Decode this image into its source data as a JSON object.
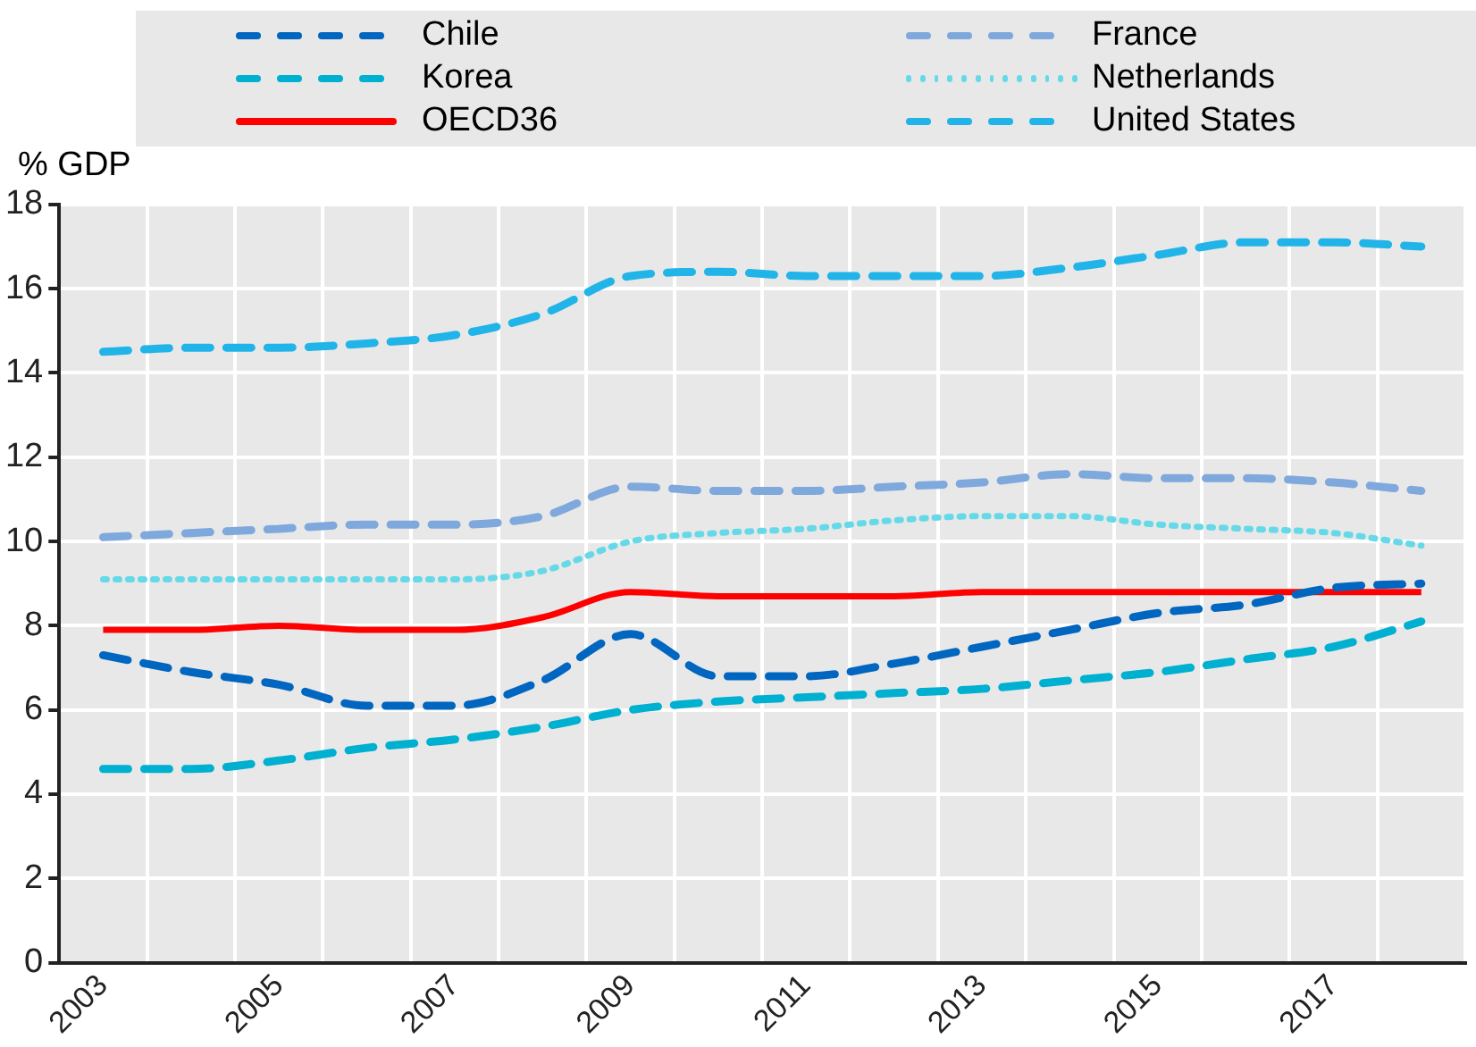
{
  "chart_data": {
    "type": "line",
    "ylabel": "% GDP",
    "categories": [
      "2003",
      null,
      "2005",
      null,
      "2007",
      null,
      "2009",
      null,
      "2011",
      null,
      "2013",
      null,
      "2015",
      null,
      "2017",
      null
    ],
    "ylim": [
      0,
      18
    ],
    "yticks": [
      0,
      2,
      4,
      6,
      8,
      10,
      12,
      14,
      16,
      18
    ],
    "grid": true,
    "legend": "top",
    "marker": "none",
    "series": [
      {
        "name": "Chile",
        "color": "#0066c0",
        "line_style": "dashed",
        "values": [
          7.3,
          6.9,
          6.6,
          6.1,
          6.1,
          6.7,
          7.8,
          6.8,
          6.8,
          7.1,
          7.5,
          7.9,
          8.3,
          8.5,
          8.9,
          9.0
        ]
      },
      {
        "name": "Korea",
        "color": "#00b0d0",
        "line_style": "dashed",
        "values": [
          4.6,
          4.6,
          4.8,
          5.1,
          5.3,
          5.6,
          6.0,
          6.2,
          6.3,
          6.4,
          6.5,
          6.7,
          6.9,
          7.2,
          7.5,
          8.1
        ]
      },
      {
        "name": "OECD36",
        "color": "#ff0000",
        "line_style": "solid",
        "values": [
          7.9,
          7.9,
          8.0,
          7.9,
          7.9,
          8.2,
          8.8,
          8.7,
          8.7,
          8.7,
          8.8,
          8.8,
          8.8,
          8.8,
          8.8,
          8.8
        ]
      },
      {
        "name": "France",
        "color": "#7fa8dc",
        "line_style": "dashed",
        "values": [
          10.1,
          10.2,
          10.3,
          10.4,
          10.4,
          10.6,
          11.3,
          11.2,
          11.2,
          11.3,
          11.4,
          11.6,
          11.5,
          11.5,
          11.4,
          11.2
        ]
      },
      {
        "name": "Netherlands",
        "color": "#66d9e8",
        "line_style": "dotted",
        "values": [
          9.1,
          9.1,
          9.1,
          9.1,
          9.1,
          9.3,
          10.0,
          10.2,
          10.3,
          10.5,
          10.6,
          10.6,
          10.4,
          10.3,
          10.2,
          9.9
        ]
      },
      {
        "name": "United States",
        "color": "#20b4e8",
        "line_style": "dashed",
        "values": [
          14.5,
          14.6,
          14.6,
          14.7,
          14.9,
          15.4,
          16.3,
          16.4,
          16.3,
          16.3,
          16.3,
          16.5,
          16.8,
          17.1,
          17.1,
          17.0
        ]
      }
    ]
  }
}
